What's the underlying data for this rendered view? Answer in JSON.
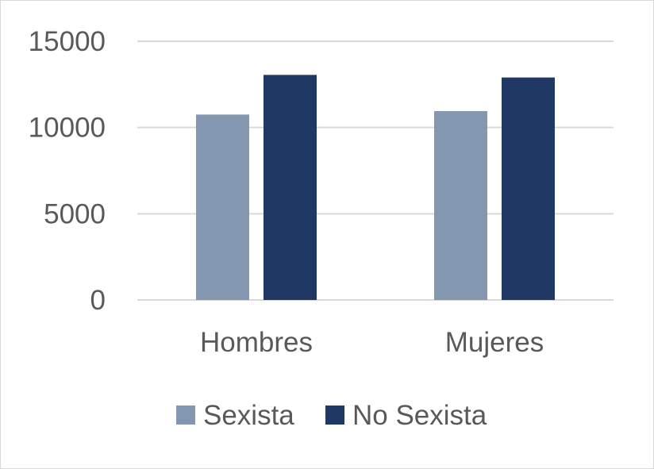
{
  "chart_data": {
    "type": "bar",
    "categories": [
      "Hombres",
      "Mujeres"
    ],
    "series": [
      {
        "name": "Sexista",
        "color": "#8497b0",
        "values": [
          10750,
          10950
        ]
      },
      {
        "name": "No Sexista",
        "color": "#203864",
        "values": [
          13050,
          12900
        ]
      }
    ],
    "ylim": [
      0,
      15000
    ],
    "yticks": [
      0,
      5000,
      10000,
      15000
    ],
    "grid": true,
    "legend": "bottom"
  }
}
